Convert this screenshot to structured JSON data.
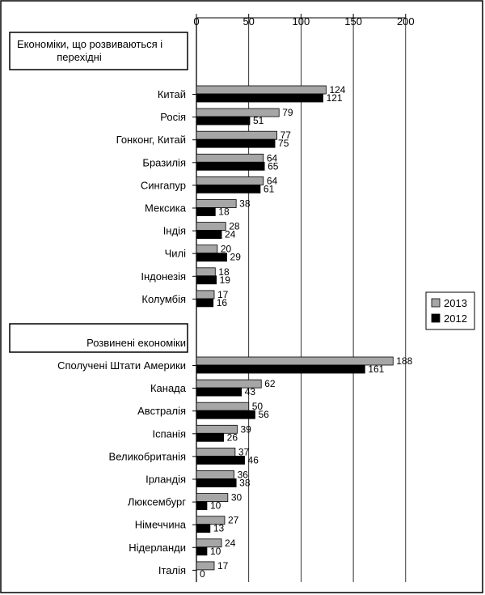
{
  "chart_data": {
    "type": "bar",
    "orientation": "horizontal",
    "xlim": [
      0,
      200
    ],
    "x_ticks": [
      "0",
      "50",
      "100",
      "150",
      "200"
    ],
    "grid": true,
    "legend_position": "right",
    "groups": [
      {
        "label": "Економіки, що розвиваються і перехідні",
        "categories": [
          "Китай",
          "Росія",
          "Гонконг, Китай",
          "Бразилія",
          "Сингапур",
          "Мексика",
          "Індія",
          "Чилі",
          "Індонезія",
          "Колумбія"
        ],
        "series": [
          {
            "name": "2013",
            "values": [
              124,
              79,
              77,
              64,
              64,
              38,
              28,
              20,
              18,
              17
            ]
          },
          {
            "name": "2012",
            "values": [
              121,
              51,
              75,
              65,
              61,
              18,
              24,
              29,
              19,
              16
            ]
          }
        ]
      },
      {
        "label": "Розвинені економіки",
        "categories": [
          "Сполучені Штати Америки",
          "Канада",
          "Австралія",
          "Іспанія",
          "Великобританія",
          "Ірландія",
          "Люксембург",
          "Німеччина",
          "Нідерланди",
          "Італія"
        ],
        "series": [
          {
            "name": "2013",
            "values": [
              188,
              62,
              50,
              39,
              37,
              36,
              30,
              27,
              24,
              17
            ]
          },
          {
            "name": "2012",
            "values": [
              161,
              43,
              56,
              26,
              46,
              38,
              10,
              13,
              10,
              0
            ]
          }
        ]
      }
    ],
    "series_colors": {
      "2013": "#a6a6a6",
      "2012": "#000000"
    }
  }
}
